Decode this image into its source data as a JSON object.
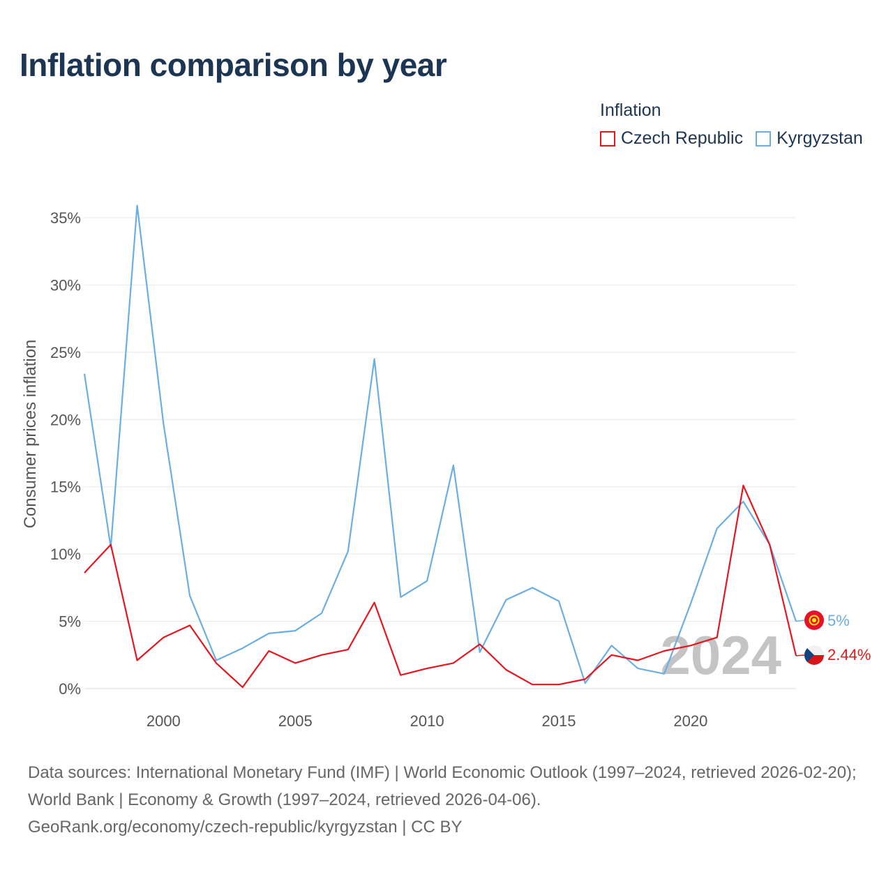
{
  "title": "Inflation comparison by year",
  "legend": {
    "title": "Inflation",
    "items": [
      {
        "label": "Czech Republic",
        "color": "#e8141e"
      },
      {
        "label": "Kyrgyzstan",
        "color": "#6aaee3"
      }
    ]
  },
  "watermark_year": "2024",
  "end_labels": {
    "czech": "2.44%",
    "kyrgyzstan": "5%"
  },
  "footer": {
    "sources": "Data sources: International Monetary Fund (IMF) | World Economic Outlook (1997–2024, retrieved 2026-02-20); World Bank | Economy & Growth (1997–2024, retrieved 2026-04-06).",
    "link": "GeoRank.org/economy/czech-republic/kyrgyzstan | CC BY"
  },
  "chart_data": {
    "type": "line",
    "title": "Inflation comparison by year",
    "xlabel": "",
    "ylabel": "Consumer prices inflation",
    "x": [
      1997,
      1998,
      1999,
      2000,
      2001,
      2002,
      2003,
      2004,
      2005,
      2006,
      2007,
      2008,
      2009,
      2010,
      2011,
      2012,
      2013,
      2014,
      2015,
      2016,
      2017,
      2018,
      2019,
      2020,
      2021,
      2022,
      2023,
      2024
    ],
    "xlim": [
      1997,
      2024
    ],
    "ylim": [
      0,
      35
    ],
    "x_ticks": [
      2000,
      2005,
      2010,
      2015,
      2020
    ],
    "y_ticks": [
      0,
      5,
      10,
      15,
      20,
      25,
      30,
      35
    ],
    "y_tick_labels": [
      "0%",
      "5%",
      "10%",
      "15%",
      "20%",
      "25%",
      "30%",
      "35%"
    ],
    "series": [
      {
        "name": "Czech Republic",
        "color": "#e8141e",
        "values": [
          8.6,
          10.7,
          2.1,
          3.8,
          4.7,
          1.9,
          0.1,
          2.8,
          1.9,
          2.5,
          2.9,
          6.4,
          1.0,
          1.5,
          1.9,
          3.3,
          1.4,
          0.3,
          0.3,
          0.7,
          2.5,
          2.1,
          2.8,
          3.2,
          3.8,
          15.1,
          10.7,
          2.44
        ]
      },
      {
        "name": "Kyrgyzstan",
        "color": "#6aaee3",
        "values": [
          23.4,
          10.5,
          35.9,
          19.7,
          6.9,
          2.1,
          3.0,
          4.1,
          4.3,
          5.6,
          10.2,
          24.5,
          6.8,
          8.0,
          16.6,
          2.7,
          6.6,
          7.5,
          6.5,
          0.4,
          3.2,
          1.5,
          1.1,
          6.3,
          11.9,
          13.9,
          10.7,
          5.0
        ]
      }
    ]
  }
}
